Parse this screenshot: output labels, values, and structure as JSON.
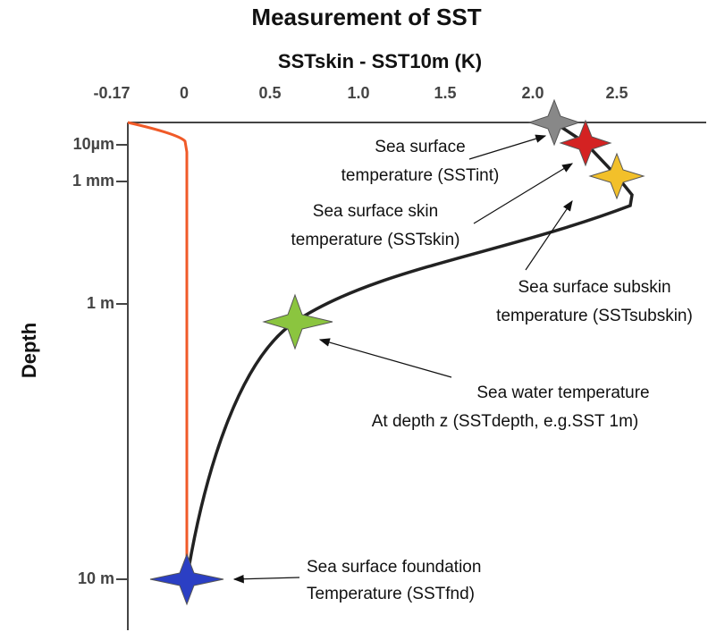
{
  "title": "Measurement of SST",
  "subtitle": "SSTskin -  SST10m (K)",
  "x_axis": {
    "ticks": [
      "-0.17",
      "0",
      "0.5",
      "1.0",
      "1.5",
      "2.0",
      "2.5"
    ]
  },
  "y_axis": {
    "label": "Depth",
    "ticks": [
      "10µm",
      "1 mm",
      "1 m",
      "10 m"
    ]
  },
  "annotations": [
    {
      "lines": [
        "Sea surface",
        "temperature (SSTint)"
      ]
    },
    {
      "lines": [
        "Sea surface skin",
        "temperature (SSTskin)"
      ]
    },
    {
      "lines": [
        "Sea surface subskin",
        "temperature (SSTsubskin)"
      ]
    },
    {
      "lines": [
        "Sea water temperature",
        "At depth z (SSTdepth, e.g.SST 1m)"
      ]
    },
    {
      "lines": [
        "Sea surface foundation",
        "Temperature (SSTfnd)"
      ]
    }
  ]
}
